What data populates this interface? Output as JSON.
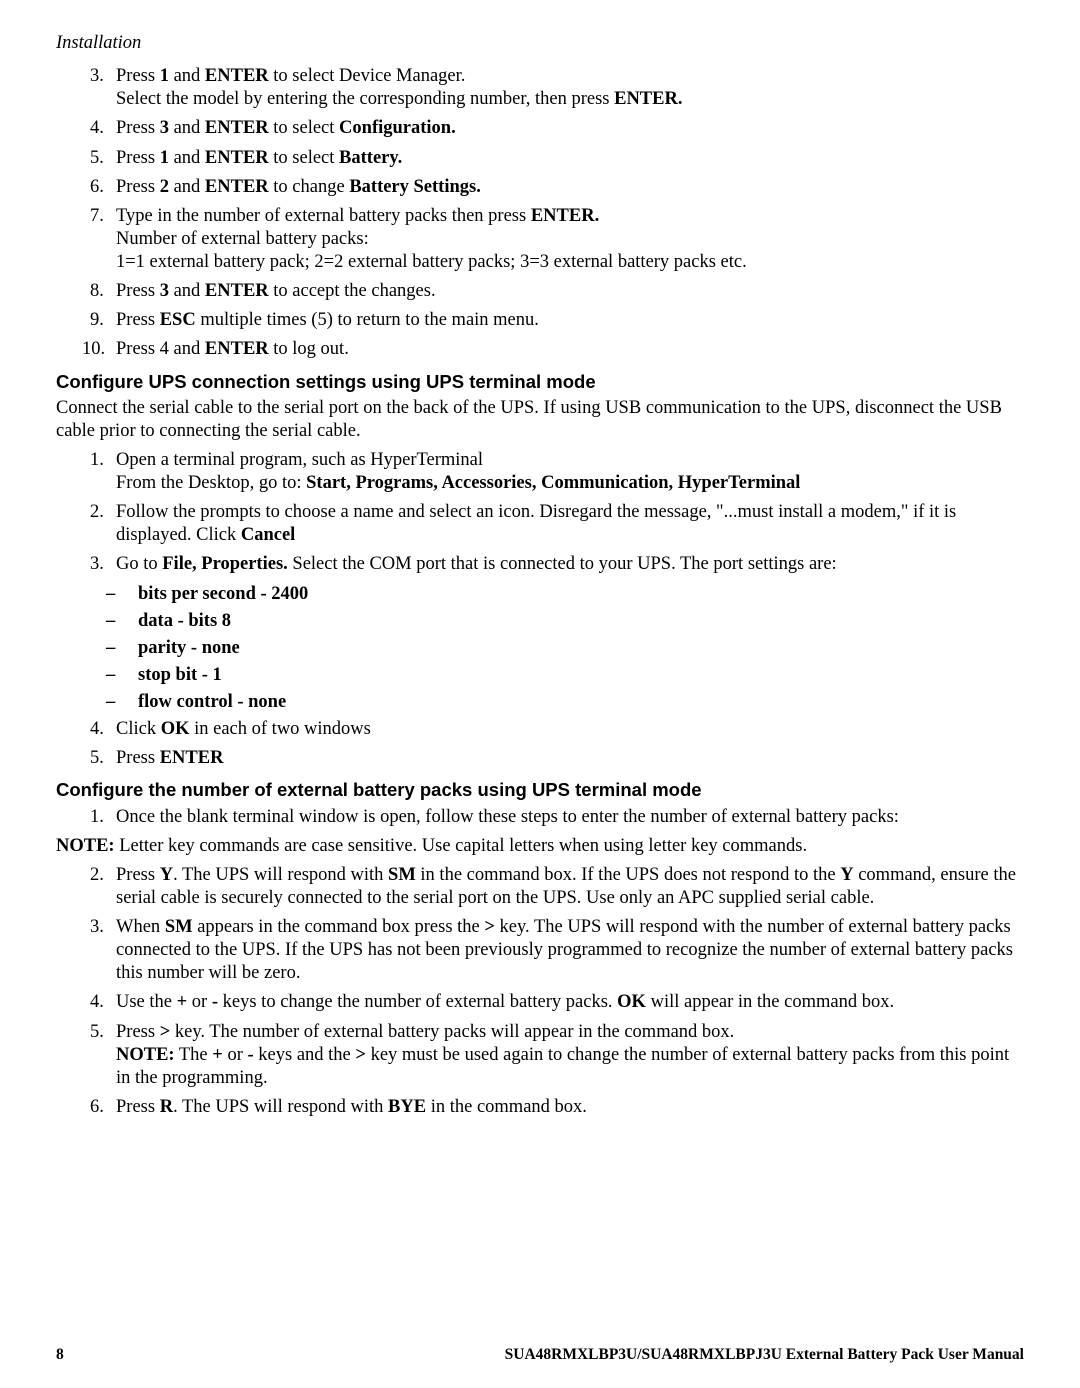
{
  "header": {
    "section": "Installation"
  },
  "list1": {
    "items": [
      {
        "n": "3.",
        "html": "Press <b>1</b> and <b>ENTER</b> to select Device Manager.<br>Select the model by entering the corresponding number, then press <b>ENTER.</b>"
      },
      {
        "n": "4.",
        "html": "Press <b>3</b> and <b>ENTER</b> to select <b>Configuration.</b>"
      },
      {
        "n": "5.",
        "html": "Press <b>1</b> and <b>ENTER</b> to select <b>Battery.</b>"
      },
      {
        "n": "6.",
        "html": "Press <b>2</b> and <b>ENTER</b> to change <b>Battery Settings.</b>"
      },
      {
        "n": "7.",
        "html": "Type in the number of external battery packs then press <b>ENTER.</b><br>Number of external battery packs:<br>1=1 external battery pack; 2=2 external battery packs; 3=3 external battery packs etc."
      },
      {
        "n": "8.",
        "html": "Press <b>3</b> and <b>ENTER</b> to accept the changes."
      },
      {
        "n": "9.",
        "html": "Press <b>ESC</b> multiple times (5) to return to the main menu."
      },
      {
        "n": "10.",
        "html": "Press 4 and <b>ENTER</b> to log out."
      }
    ]
  },
  "h1": {
    "text": "Configure UPS connection settings using UPS terminal mode"
  },
  "p1": {
    "text": "Connect the serial cable to the serial port on the back of the UPS. If using USB communication to the UPS, disconnect the USB cable prior to connecting the serial cable."
  },
  "list2": {
    "items": [
      {
        "n": "1.",
        "html": "Open a terminal program, such as HyperTerminal<br>From the Desktop, go to: <b>Start, Programs, Accessories, Communication, HyperTerminal</b>"
      },
      {
        "n": "2.",
        "html": "Follow the prompts to choose a name and select an icon. Disregard the message, \"...must install a modem,\" if it is displayed. Click <b>Cancel</b>"
      },
      {
        "n": "3.",
        "html": " Go to <b>File, Properties.</b> Select the COM port that is connected to your UPS. The port settings are:"
      }
    ]
  },
  "sublist": {
    "items": [
      "bits per second - 2400",
      "data - bits 8",
      "parity - none",
      "stop bit - 1",
      "flow control - none"
    ]
  },
  "list2b": {
    "items": [
      {
        "n": "4.",
        "html": "Click <b>OK</b> in each of two windows"
      },
      {
        "n": "5.",
        "html": "Press <b>ENTER</b>"
      }
    ]
  },
  "h2": {
    "text": "Configure the number of external battery packs using UPS terminal mode"
  },
  "list3a": {
    "items": [
      {
        "n": "1.",
        "html": "Once the blank terminal window is open, follow these steps to enter the number of external battery packs:"
      }
    ]
  },
  "note": {
    "html": "<b>NOTE:</b> Letter key commands are case sensitive. Use capital letters when using letter key commands."
  },
  "list3b": {
    "items": [
      {
        "n": "2.",
        "html": "Press <b>Y</b>. The UPS will respond with <b>SM</b> in the command box. If the UPS does not respond to the <b>Y</b> command, ensure the serial cable is securely connected to the serial port on the UPS. Use only an APC supplied serial cable."
      },
      {
        "n": "3.",
        "html": "When <b>SM</b> appears in the command box press the <b>&gt;</b> key. The UPS will respond with the number of external battery packs connected to the UPS. If the UPS has not been previously programmed to recognize the number of external battery packs this number will be zero."
      },
      {
        "n": "4.",
        "html": "Use the <b>+</b> or <b>-</b> keys to change the number of external battery packs. <b>OK</b> will appear in the command box."
      },
      {
        "n": "5.",
        "html": "Press <b>&gt;</b> key. The number of external battery packs will appear in the command box.<br><b>NOTE:</b> The <b>+</b> or <b>-</b> keys and the <b>&gt;</b> key must be used again to change the number of external battery packs from this point in the programming."
      },
      {
        "n": "6.",
        "html": "Press <b>R</b>. The UPS will respond with <b>BYE</b> in the command box."
      }
    ]
  },
  "footer": {
    "page": "8",
    "title": "SUA48RMXLBP3U/SUA48RMXLBPJ3U External Battery Pack User Manual"
  }
}
